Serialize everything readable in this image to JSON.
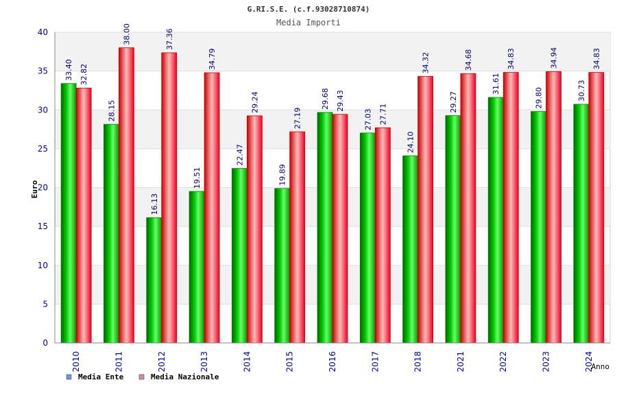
{
  "chart_data": {
    "type": "bar",
    "title": "G.RI.S.E. (c.f.93028710874)",
    "subtitle": "Media Importi",
    "xlabel": "Anno",
    "ylabel": "Euro",
    "ylim": [
      0,
      40
    ],
    "yticks": [
      0,
      5,
      10,
      15,
      20,
      25,
      30,
      35,
      40
    ],
    "grid": true,
    "legend_position": "bottom-left",
    "categories": [
      "2010",
      "2011",
      "2012",
      "2013",
      "2014",
      "2015",
      "2016",
      "2017",
      "2018",
      "2021",
      "2022",
      "2023",
      "2024"
    ],
    "series": [
      {
        "name": "Media Ente",
        "color": "#00cc00",
        "legend_color": "#6699ee",
        "values": [
          33.4,
          28.15,
          16.13,
          19.51,
          22.47,
          19.89,
          29.68,
          27.03,
          24.1,
          29.27,
          31.61,
          29.8,
          30.73
        ],
        "labels": [
          "33.40",
          "28.15",
          "16.13",
          "19.51",
          "22.47",
          "19.89",
          "29.68",
          "27.03",
          "24.10",
          "29.27",
          "31.61",
          "29.80",
          "30.73"
        ]
      },
      {
        "name": "Media Nazionale",
        "color": "#ee0022",
        "legend_color": "#dd88aa",
        "values": [
          32.82,
          38.0,
          37.36,
          34.79,
          29.24,
          27.19,
          29.43,
          27.71,
          34.32,
          34.68,
          34.83,
          34.94,
          34.83
        ],
        "labels": [
          "32.82",
          "38.00",
          "37.36",
          "34.79",
          "29.24",
          "27.19",
          "29.43",
          "27.71",
          "34.32",
          "34.68",
          "34.83",
          "34.94",
          "34.83"
        ]
      }
    ]
  }
}
